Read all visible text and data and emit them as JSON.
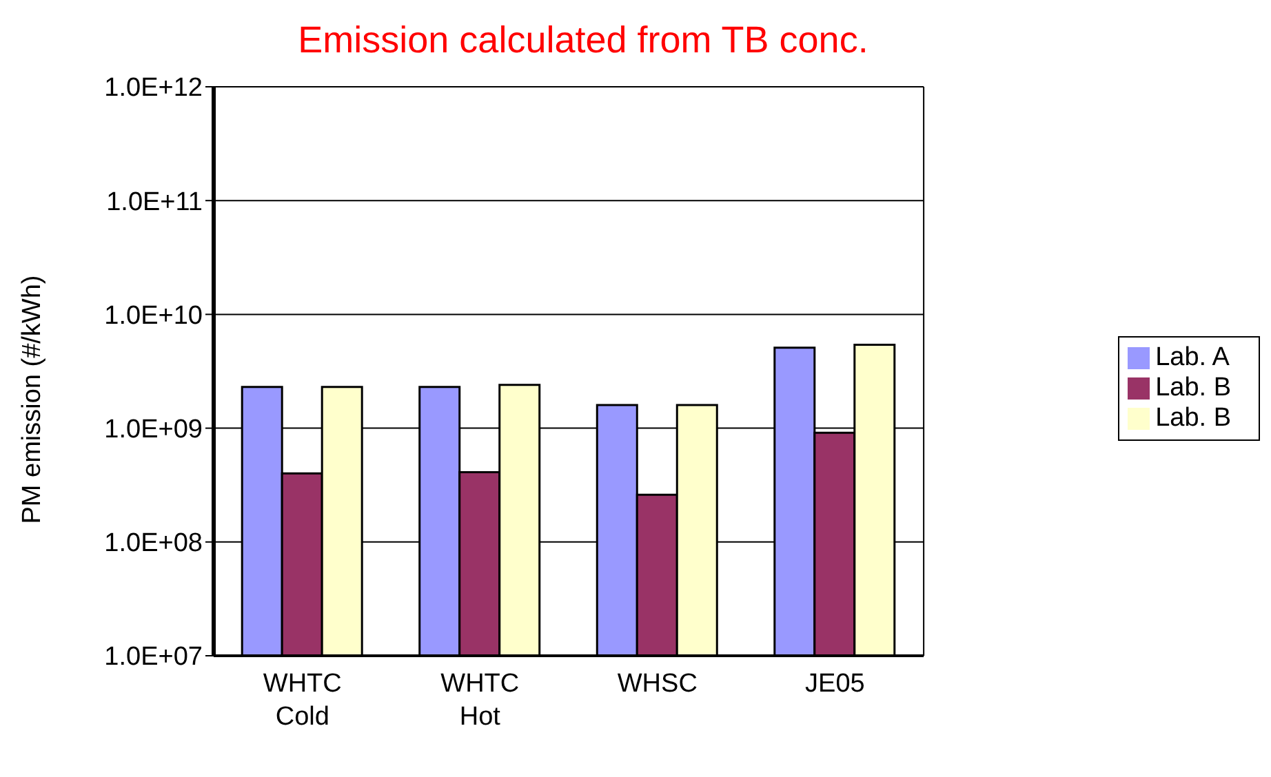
{
  "chart_data": {
    "type": "bar",
    "title": "Emission calculated from TB conc.",
    "ylabel": "PM emission (#/kWh)",
    "categories": [
      "WHTC\nCold",
      "WHTC\nHot",
      "WHSC",
      "JE05"
    ],
    "series": [
      {
        "name": "Lab. A",
        "color": "#9999ff",
        "values": [
          2300000000.0,
          2300000000.0,
          1600000000.0,
          5100000000.0
        ]
      },
      {
        "name": "Lab. B",
        "color": "#993366",
        "values": [
          400000000.0,
          410000000.0,
          260000000.0,
          910000000.0
        ]
      },
      {
        "name": "Lab. B",
        "color": "#ffffcc",
        "values": [
          2300000000.0,
          2400000000.0,
          1600000000.0,
          5400000000.0
        ]
      }
    ],
    "log": "y",
    "ylim": [
      10000000.0,
      1000000000000.0
    ],
    "yticks": [
      {
        "value": 10000000.0,
        "label": "1.0E+07"
      },
      {
        "value": 100000000.0,
        "label": "1.0E+08"
      },
      {
        "value": 1000000000.0,
        "label": "1.0E+09"
      },
      {
        "value": 10000000000.0,
        "label": "1.0E+10"
      },
      {
        "value": 100000000000.0,
        "label": "1.0E+11"
      },
      {
        "value": 1000000000000.0,
        "label": "1.0E+12"
      }
    ],
    "grid": "y",
    "legend": "right"
  }
}
